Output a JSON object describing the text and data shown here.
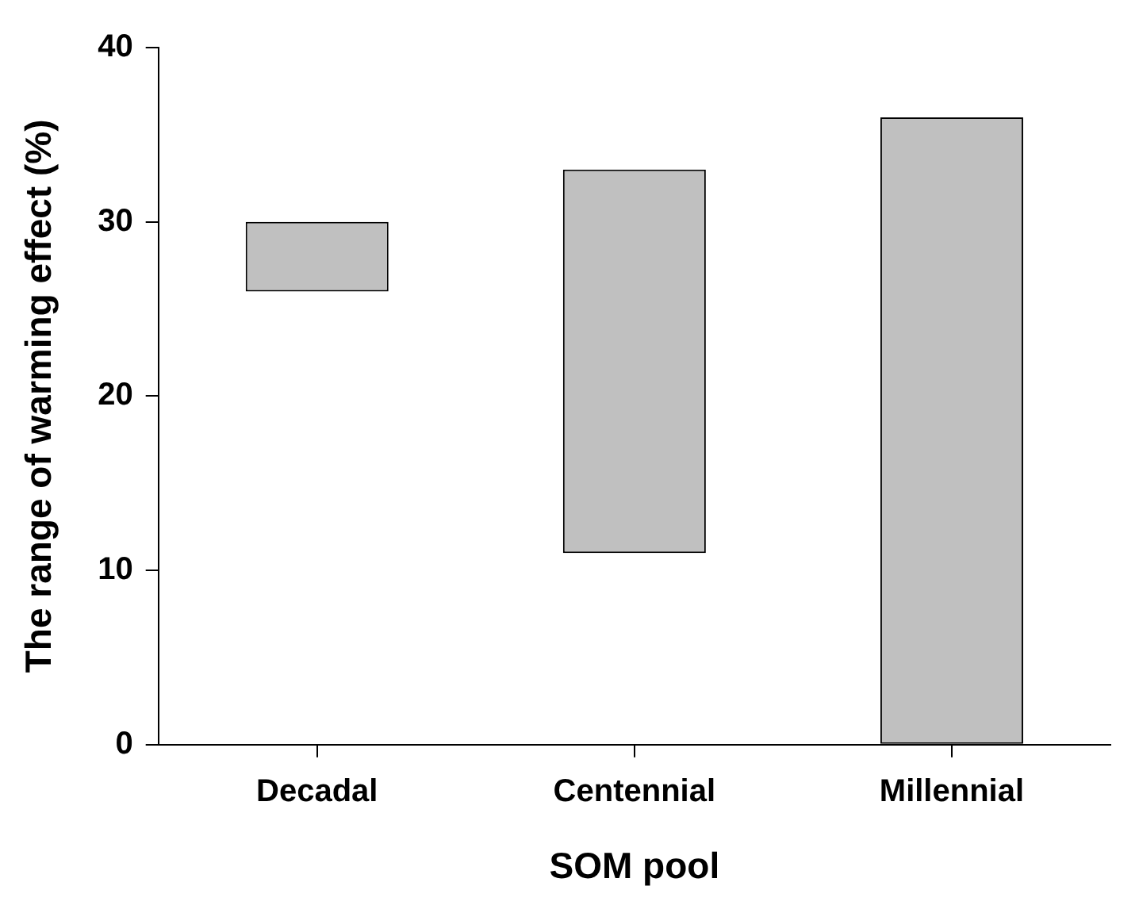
{
  "chart_data": {
    "type": "bar",
    "xlabel": "SOM pool",
    "ylabel": "The range of warming effect (%)",
    "categories": [
      "Decadal",
      "Centennial",
      "Millennial"
    ],
    "values": [
      4,
      22,
      36
    ],
    "base": [
      26,
      11,
      0
    ],
    "color": "#c0c0c0",
    "ylim": [
      0,
      40
    ],
    "yticks": [
      0,
      10,
      20,
      30,
      40
    ],
    "grid": false,
    "legend": false
  }
}
